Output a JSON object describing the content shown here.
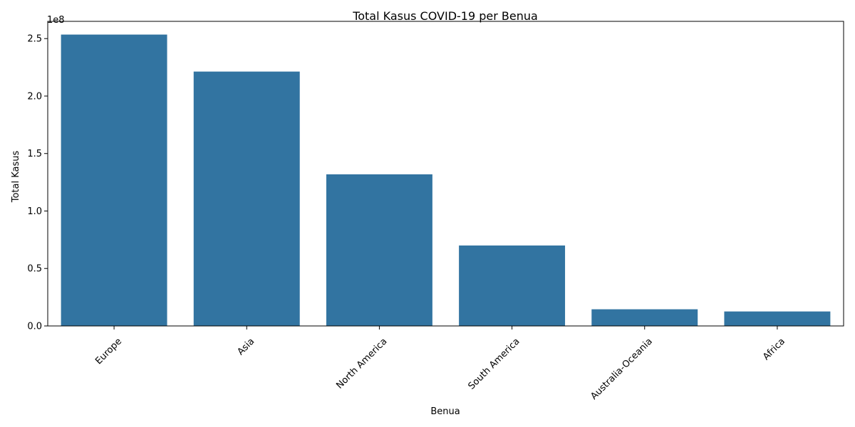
{
  "chart_data": {
    "type": "bar",
    "title": "Total Kasus COVID-19 per Benua",
    "xlabel": "Benua",
    "ylabel": "Total Kasus",
    "y_offset_label": "1e8",
    "categories": [
      "Europe",
      "Asia",
      "North America",
      "South America",
      "Australia-Oceania",
      "Africa"
    ],
    "values": [
      253500000,
      221300000,
      131900000,
      70000000,
      14500000,
      12600000
    ],
    "ylim": [
      0,
      265000000
    ],
    "yticks": [
      0,
      50000000,
      100000000,
      150000000,
      200000000,
      250000000
    ],
    "ytick_labels": [
      "0.0",
      "0.5",
      "1.0",
      "1.5",
      "2.0",
      "2.5"
    ],
    "bar_color": "#3274a1",
    "grid": false,
    "legend": "none"
  }
}
